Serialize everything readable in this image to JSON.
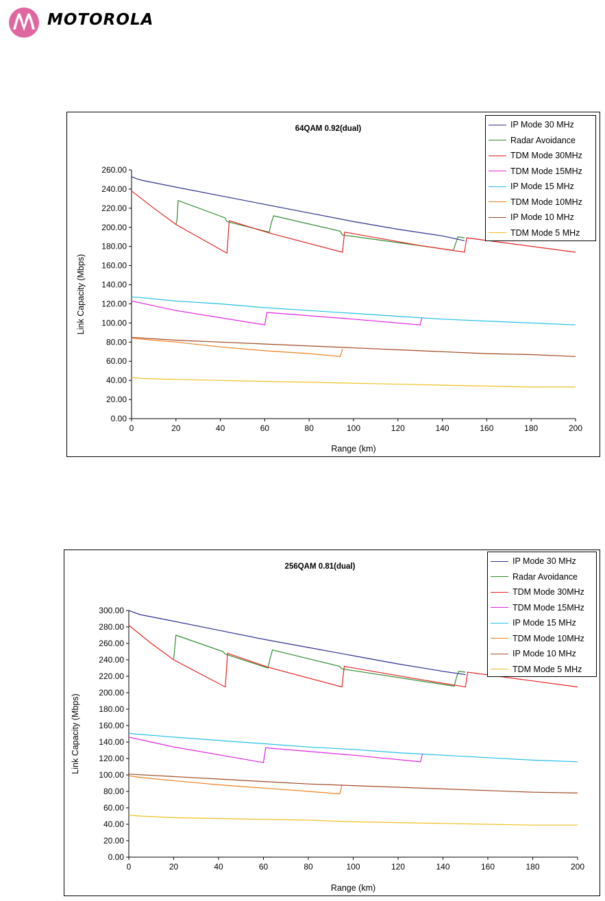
{
  "header": {
    "brand": "MOTOROLA",
    "logo_icon": "motorola-batwing-logo-icon",
    "logo_color": "#E066A0"
  },
  "series_colors": {
    "IP Mode 30 MHz": "#2E2E90",
    "Radar Avoidance": "#2E8B2E",
    "TDM Mode 30MHz": "#E82020",
    "TDM Mode 15MHz": "#E020E0",
    "IP Mode 15 MHz": "#20C0E8",
    "TDM Mode 10MHz": "#F08020",
    "IP Mode 10 MHz": "#A04820",
    "TDM Mode 5 MHz": "#F0C020"
  },
  "chart_data": [
    {
      "type": "line",
      "title": "64QAM 0.92(dual)",
      "xlabel": "Range (km)",
      "ylabel": "Link Capacity (Mbps)",
      "xlim": [
        0,
        200
      ],
      "ylim": [
        0,
        260
      ],
      "xticks": [
        "0",
        "20",
        "40",
        "60",
        "80",
        "100",
        "120",
        "140",
        "160",
        "180",
        "200"
      ],
      "yticks": [
        "0.00",
        "20.00",
        "40.00",
        "60.00",
        "80.00",
        "100.00",
        "120.00",
        "140.00",
        "160.00",
        "180.00",
        "200.00",
        "220.00",
        "240.00",
        "260.00"
      ],
      "legend_position": "top-right",
      "grid": false,
      "series": [
        {
          "name": "IP Mode 30 MHz",
          "x": [
            0,
            2,
            5,
            20,
            40,
            60,
            80,
            100,
            120,
            140,
            150
          ],
          "y": [
            253,
            251,
            249,
            242,
            233,
            224,
            215,
            206,
            198,
            191,
            186
          ]
        },
        {
          "name": "Radar Avoidance",
          "x": [
            20,
            20.5,
            21,
            42,
            43,
            62,
            63,
            64,
            94,
            95,
            145,
            146,
            147,
            150
          ],
          "y": [
            203,
            208,
            228,
            210,
            206,
            195,
            205,
            212,
            196,
            192,
            176,
            183,
            190,
            189
          ]
        },
        {
          "name": "TDM Mode 30MHz",
          "x": [
            0,
            10,
            20,
            43,
            43.5,
            44,
            62,
            95,
            95.5,
            96,
            130,
            150,
            150.5,
            151,
            200
          ],
          "y": [
            238,
            220,
            203,
            173,
            190,
            207,
            194,
            174,
            185,
            195,
            181,
            174,
            182,
            189,
            174
          ]
        },
        {
          "name": "TDM Mode 15MHz",
          "x": [
            0,
            10,
            20,
            60,
            60.5,
            61,
            100,
            130,
            130.5,
            131
          ],
          "y": [
            123,
            118,
            113,
            98,
            105,
            111,
            104,
            98,
            103,
            106
          ]
        },
        {
          "name": "IP Mode 15 MHz",
          "x": [
            0,
            2,
            20,
            40,
            60,
            80,
            100,
            120,
            140,
            160,
            180,
            200
          ],
          "y": [
            127,
            127,
            123,
            120,
            116,
            113,
            110,
            107,
            104,
            102,
            100,
            98
          ]
        },
        {
          "name": "TDM Mode 10MHz",
          "x": [
            0,
            5,
            20,
            40,
            60,
            80,
            94,
            94.5,
            95
          ],
          "y": [
            84,
            83,
            80,
            75,
            71,
            68,
            65,
            69,
            73
          ]
        },
        {
          "name": "IP Mode 10 MHz",
          "x": [
            0,
            20,
            40,
            60,
            80,
            100,
            120,
            140,
            160,
            180,
            200
          ],
          "y": [
            85,
            82,
            80,
            78,
            76,
            74,
            72,
            70,
            68,
            67,
            65
          ]
        },
        {
          "name": "TDM Mode 5 MHz",
          "x": [
            0,
            5,
            20,
            40,
            60,
            80,
            100,
            120,
            140,
            160,
            180,
            200
          ],
          "y": [
            43,
            42,
            41,
            40,
            39,
            38,
            37,
            36,
            35,
            34,
            33,
            33
          ]
        }
      ]
    },
    {
      "type": "line",
      "title": "256QAM 0.81(dual)",
      "xlabel": "Range (km)",
      "ylabel": "Link Capacity (Mbps)",
      "xlim": [
        0,
        200
      ],
      "ylim": [
        0,
        300
      ],
      "xticks": [
        "0",
        "20",
        "40",
        "60",
        "80",
        "100",
        "120",
        "140",
        "160",
        "180",
        "200"
      ],
      "yticks": [
        "0.00",
        "20.00",
        "40.00",
        "60.00",
        "80.00",
        "100.00",
        "120.00",
        "140.00",
        "160.00",
        "180.00",
        "200.00",
        "220.00",
        "240.00",
        "260.00",
        "280.00",
        "300.00"
      ],
      "legend_position": "top-right",
      "grid": false,
      "series": [
        {
          "name": "IP Mode 30 MHz",
          "x": [
            0,
            2,
            5,
            20,
            40,
            60,
            80,
            100,
            120,
            140,
            150
          ],
          "y": [
            300,
            298,
            295,
            287,
            276,
            265,
            255,
            245,
            235,
            226,
            222
          ]
        },
        {
          "name": "Radar Avoidance",
          "x": [
            20,
            20.5,
            21,
            42,
            43,
            62,
            63,
            64,
            94,
            95,
            145,
            146,
            147,
            150
          ],
          "y": [
            241,
            255,
            270,
            250,
            247,
            230,
            242,
            252,
            232,
            229,
            208,
            218,
            226,
            225
          ]
        },
        {
          "name": "TDM Mode 30MHz",
          "x": [
            0,
            10,
            20,
            43,
            43.5,
            44,
            62,
            95,
            95.5,
            96,
            130,
            150,
            150.5,
            151,
            200
          ],
          "y": [
            282,
            260,
            240,
            207,
            228,
            248,
            231,
            207,
            220,
            232,
            216,
            207,
            216,
            225,
            207
          ]
        },
        {
          "name": "TDM Mode 15MHz",
          "x": [
            0,
            10,
            20,
            60,
            60.5,
            61,
            100,
            130,
            130.5,
            131
          ],
          "y": [
            146,
            140,
            134,
            115,
            124,
            133,
            124,
            116,
            122,
            126
          ]
        },
        {
          "name": "IP Mode 15 MHz",
          "x": [
            0,
            2,
            20,
            40,
            60,
            80,
            100,
            120,
            140,
            160,
            180,
            200
          ],
          "y": [
            151,
            150,
            146,
            142,
            138,
            134,
            131,
            127,
            124,
            121,
            118,
            116
          ]
        },
        {
          "name": "TDM Mode 10MHz",
          "x": [
            0,
            5,
            20,
            40,
            60,
            80,
            94,
            94.5,
            95
          ],
          "y": [
            99,
            97,
            93,
            88,
            84,
            80,
            77,
            82,
            88
          ]
        },
        {
          "name": "IP Mode 10 MHz",
          "x": [
            0,
            20,
            40,
            60,
            80,
            100,
            120,
            140,
            160,
            180,
            200
          ],
          "y": [
            101,
            98,
            95,
            92,
            89,
            87,
            85,
            83,
            81,
            79,
            78
          ]
        },
        {
          "name": "TDM Mode 5 MHz",
          "x": [
            0,
            5,
            20,
            40,
            60,
            80,
            100,
            120,
            140,
            160,
            180,
            200
          ],
          "y": [
            51,
            50,
            48,
            47,
            46,
            45,
            43,
            42,
            41,
            40,
            39,
            39
          ]
        }
      ]
    }
  ]
}
